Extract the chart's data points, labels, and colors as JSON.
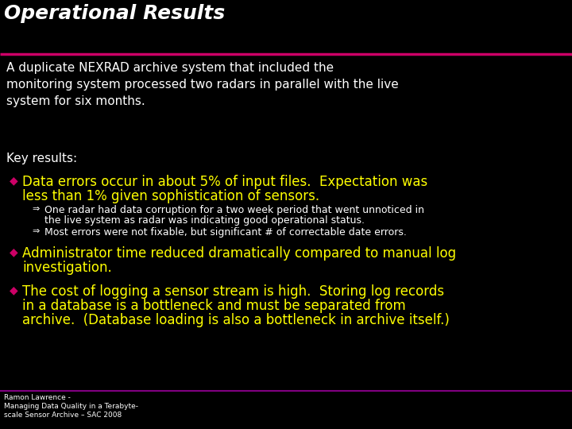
{
  "background_color": "#000000",
  "title": "Operational Results",
  "title_color": "#ffffff",
  "title_fontsize": 18,
  "divider_color": "#cc0066",
  "body_text_color": "#ffffff",
  "bullet_color": "#cc0066",
  "yellow_color": "#ffff00",
  "sub_bullet_color": "#ffffff",
  "intro_text": "A duplicate NEXRAD archive system that included the\nmonitoring system processed two radars in parallel with the live\nsystem for six months.",
  "intro_fontsize": 11,
  "key_results_label": "Key results:",
  "key_results_fontsize": 11,
  "bullet_fontsize": 12,
  "sub_fontsize": 9,
  "footer_line_color": "#800080",
  "footer_text": "Ramon Lawrence -\nManaging Data Quality in a Terabyte-\nscale Sensor Archive – SAC 2008",
  "footer_fontsize": 6.5,
  "bullet1_line1": "Data errors occur in about 5% of input files.  Expectation was",
  "bullet1_line2": "less than 1% given sophistication of sensors.",
  "sub1_line1": "One radar had data corruption for a two week period that went unnoticed in",
  "sub1_line2": "the live system as radar was indicating good operational status.",
  "sub2": "Most errors were not fixable, but significant # of correctable date errors.",
  "bullet2_line1": "Administrator time reduced dramatically compared to manual log",
  "bullet2_line2": "investigation.",
  "bullet3_line1": "The cost of logging a sensor stream is high.  Storing log records",
  "bullet3_line2": "in a database is a bottleneck and must be separated from",
  "bullet3_line3": "archive.  (Database loading is also a bottleneck in archive itself.)"
}
